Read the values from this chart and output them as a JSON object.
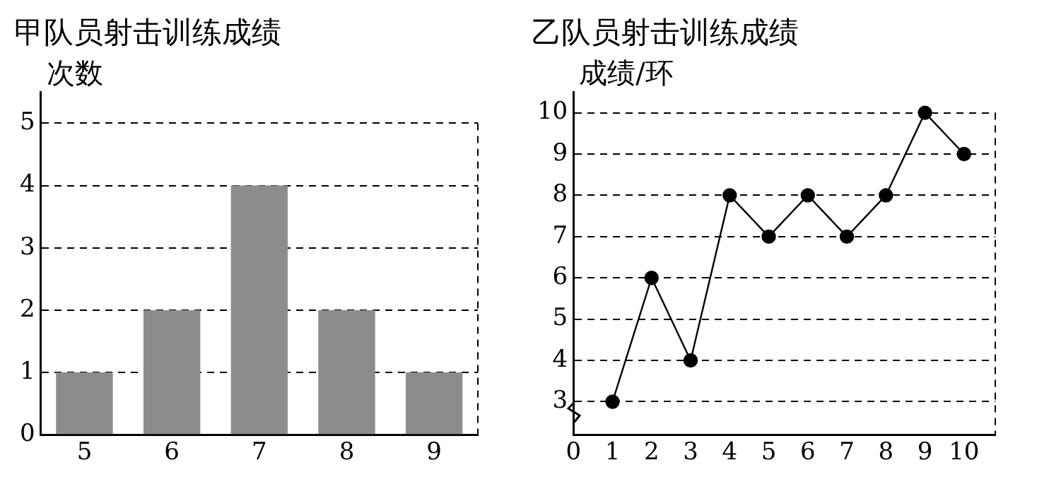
{
  "chart_data": [
    {
      "type": "bar",
      "title": "甲队员射击训练成绩",
      "ylabel": "次数",
      "categories": [
        "5",
        "6",
        "7",
        "8",
        "9"
      ],
      "values": [
        1,
        2,
        4,
        2,
        1
      ],
      "color": "#8c8c8c",
      "ylim": [
        0,
        5.5
      ],
      "yticks": [
        0,
        1,
        2,
        3,
        4,
        5
      ],
      "grid": "y"
    },
    {
      "type": "line",
      "title": "乙队员射击训练成绩",
      "ylabel": "成绩/环",
      "x": [
        1,
        2,
        3,
        4,
        5,
        6,
        7,
        8,
        9,
        10
      ],
      "values": [
        3,
        6,
        4,
        8,
        7,
        8,
        7,
        8,
        10,
        9
      ],
      "color": "#000000",
      "marker": "circle",
      "line_style": "solid",
      "xlim": [
        0,
        10.8
      ],
      "xticks": [
        0,
        1,
        2,
        3,
        4,
        5,
        6,
        7,
        8,
        9,
        10
      ],
      "ylim": [
        2.2,
        10.5
      ],
      "yticks": [
        3,
        4,
        5,
        6,
        7,
        8,
        9,
        10
      ],
      "grid": "y"
    }
  ]
}
